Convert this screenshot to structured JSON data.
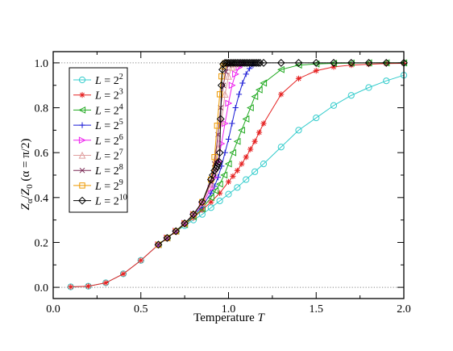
{
  "chart_data": {
    "type": "line",
    "xlabel": {
      "text": "Temperature ",
      "var": "T"
    },
    "ylabel": {
      "Z1": "Z",
      "Zsub1": "α",
      "slash": "/",
      "Z2": "Z",
      "Zsub2": "0",
      "rest": " (α = π/2)"
    },
    "xlim": [
      0.0,
      2.0
    ],
    "ylim": [
      -0.05,
      1.05
    ],
    "xticks": [
      "0.0",
      "0.5",
      "1.0",
      "1.5",
      "2.0"
    ],
    "yticks": [
      "0.0",
      "0.2",
      "0.4",
      "0.6",
      "0.8",
      "1.0"
    ],
    "xtick_values": [
      0.0,
      0.5,
      1.0,
      1.5,
      2.0
    ],
    "ytick_values": [
      0.0,
      0.2,
      0.4,
      0.6,
      0.8,
      1.0
    ],
    "reference_lines": [
      0.0,
      1.0
    ],
    "legend_position": "top-left",
    "series": [
      {
        "name_base": "L = 2",
        "name_exp": "2",
        "color": "#33cccc",
        "marker": "circle",
        "x": [
          0.1,
          0.2,
          0.3,
          0.4,
          0.5,
          0.6,
          0.65,
          0.7,
          0.75,
          0.8,
          0.85,
          0.9,
          0.95,
          1.0,
          1.05,
          1.1,
          1.15,
          1.2,
          1.3,
          1.4,
          1.5,
          1.6,
          1.7,
          1.8,
          1.9,
          2.0
        ],
        "y": [
          0.002,
          0.005,
          0.02,
          0.06,
          0.12,
          0.19,
          0.22,
          0.25,
          0.275,
          0.3,
          0.325,
          0.355,
          0.385,
          0.415,
          0.445,
          0.48,
          0.515,
          0.55,
          0.625,
          0.7,
          0.755,
          0.81,
          0.855,
          0.89,
          0.92,
          0.945
        ]
      },
      {
        "name_base": "L = 2",
        "name_exp": "3",
        "color": "#e52222",
        "marker": "star",
        "x": [
          0.1,
          0.2,
          0.3,
          0.4,
          0.5,
          0.6,
          0.65,
          0.7,
          0.75,
          0.8,
          0.85,
          0.9,
          0.95,
          1.0,
          1.025,
          1.05,
          1.075,
          1.1,
          1.125,
          1.15,
          1.175,
          1.2,
          1.3,
          1.4,
          1.5,
          1.6,
          1.7,
          1.8,
          1.9,
          2.0
        ],
        "y": [
          0.002,
          0.005,
          0.02,
          0.06,
          0.12,
          0.19,
          0.22,
          0.25,
          0.28,
          0.31,
          0.345,
          0.38,
          0.42,
          0.47,
          0.495,
          0.52,
          0.55,
          0.58,
          0.615,
          0.65,
          0.69,
          0.73,
          0.86,
          0.93,
          0.965,
          0.982,
          0.99,
          0.994,
          0.997,
          0.998
        ]
      },
      {
        "name_base": "L = 2",
        "name_exp": "4",
        "color": "#22aa22",
        "marker": "triangle-left",
        "x": [
          0.6,
          0.65,
          0.7,
          0.75,
          0.8,
          0.85,
          0.9,
          0.925,
          0.95,
          0.975,
          1.0,
          1.025,
          1.05,
          1.075,
          1.1,
          1.125,
          1.15,
          1.175,
          1.2,
          1.3,
          1.4,
          1.5,
          1.6,
          1.7,
          1.8,
          1.9,
          2.0
        ],
        "y": [
          0.19,
          0.22,
          0.25,
          0.28,
          0.315,
          0.35,
          0.4,
          0.43,
          0.46,
          0.5,
          0.55,
          0.6,
          0.65,
          0.7,
          0.75,
          0.8,
          0.85,
          0.88,
          0.91,
          0.97,
          0.99,
          0.995,
          0.998,
          0.999,
          1.0,
          1.0,
          1.0
        ]
      },
      {
        "name_base": "L = 2",
        "name_exp": "5",
        "color": "#1a1ad6",
        "marker": "plus",
        "x": [
          0.6,
          0.65,
          0.7,
          0.75,
          0.8,
          0.85,
          0.9,
          0.92,
          0.94,
          0.96,
          0.98,
          1.0,
          1.02,
          1.04,
          1.06,
          1.08,
          1.1,
          1.12,
          1.14
        ],
        "y": [
          0.19,
          0.22,
          0.25,
          0.285,
          0.32,
          0.36,
          0.42,
          0.45,
          0.49,
          0.54,
          0.6,
          0.66,
          0.73,
          0.8,
          0.86,
          0.91,
          0.95,
          0.975,
          0.99
        ]
      },
      {
        "name_base": "L = 2",
        "name_exp": "6",
        "color": "#ee22ee",
        "marker": "triangle-right",
        "x": [
          0.6,
          0.65,
          0.7,
          0.75,
          0.8,
          0.85,
          0.9,
          0.92,
          0.94,
          0.96,
          0.98,
          1.0,
          1.02,
          1.04,
          1.06,
          1.08
        ],
        "y": [
          0.19,
          0.22,
          0.25,
          0.285,
          0.325,
          0.37,
          0.44,
          0.49,
          0.56,
          0.64,
          0.73,
          0.82,
          0.9,
          0.95,
          0.98,
          0.995
        ]
      },
      {
        "name_base": "L = 2",
        "name_exp": "7",
        "color": "#e0a0a0",
        "marker": "triangle-up",
        "x": [
          0.6,
          0.65,
          0.7,
          0.75,
          0.8,
          0.85,
          0.9,
          0.92,
          0.94,
          0.96,
          0.98,
          1.0,
          1.02,
          1.04
        ],
        "y": [
          0.19,
          0.22,
          0.25,
          0.285,
          0.325,
          0.375,
          0.46,
          0.52,
          0.62,
          0.74,
          0.86,
          0.94,
          0.98,
          0.995
        ]
      },
      {
        "name_base": "L = 2",
        "name_exp": "8",
        "color": "#7a2a55",
        "marker": "x",
        "x": [
          0.6,
          0.65,
          0.7,
          0.75,
          0.8,
          0.85,
          0.9,
          0.92,
          0.94,
          0.955,
          0.97,
          0.985,
          1.0,
          1.02
        ],
        "y": [
          0.19,
          0.22,
          0.25,
          0.285,
          0.325,
          0.38,
          0.47,
          0.55,
          0.68,
          0.8,
          0.9,
          0.96,
          0.99,
          0.998
        ]
      },
      {
        "name_base": "L = 2",
        "name_exp": "9",
        "color": "#ee9900",
        "marker": "square",
        "x": [
          0.6,
          0.65,
          0.7,
          0.75,
          0.8,
          0.85,
          0.9,
          0.92,
          0.935,
          0.95,
          0.96,
          0.97,
          0.98
        ],
        "y": [
          0.19,
          0.22,
          0.25,
          0.285,
          0.325,
          0.38,
          0.48,
          0.58,
          0.72,
          0.86,
          0.94,
          0.985,
          0.998
        ]
      },
      {
        "name_base": "L = 2",
        "name_exp": "10",
        "color": "#000000",
        "marker": "diamond",
        "x": [
          0.6,
          0.65,
          0.7,
          0.75,
          0.8,
          0.85,
          0.9,
          0.91,
          0.92,
          0.93,
          0.935,
          0.94,
          0.945,
          0.95,
          0.955,
          0.96,
          0.965,
          0.97,
          0.98,
          0.99,
          1.0,
          1.01,
          1.02,
          1.03,
          1.04,
          1.05,
          1.06,
          1.07,
          1.08,
          1.09,
          1.1,
          1.11,
          1.12,
          1.13,
          1.14,
          1.15,
          1.16,
          1.17,
          1.18,
          1.2,
          1.3,
          1.4,
          1.5,
          1.6,
          1.7,
          1.8,
          1.9,
          2.0
        ],
        "y": [
          0.19,
          0.22,
          0.25,
          0.285,
          0.325,
          0.38,
          0.48,
          0.5,
          0.52,
          0.53,
          0.54,
          0.55,
          0.56,
          0.6,
          0.75,
          0.9,
          0.97,
          0.995,
          1.0,
          1.0,
          1.0,
          1.0,
          1.0,
          1.0,
          1.0,
          1.0,
          1.0,
          1.0,
          1.0,
          1.0,
          1.0,
          1.0,
          1.0,
          1.0,
          1.0,
          1.0,
          1.0,
          1.0,
          1.0,
          1.0,
          1.0,
          1.0,
          1.0,
          1.0,
          1.0,
          1.0,
          1.0,
          1.0
        ]
      }
    ]
  }
}
